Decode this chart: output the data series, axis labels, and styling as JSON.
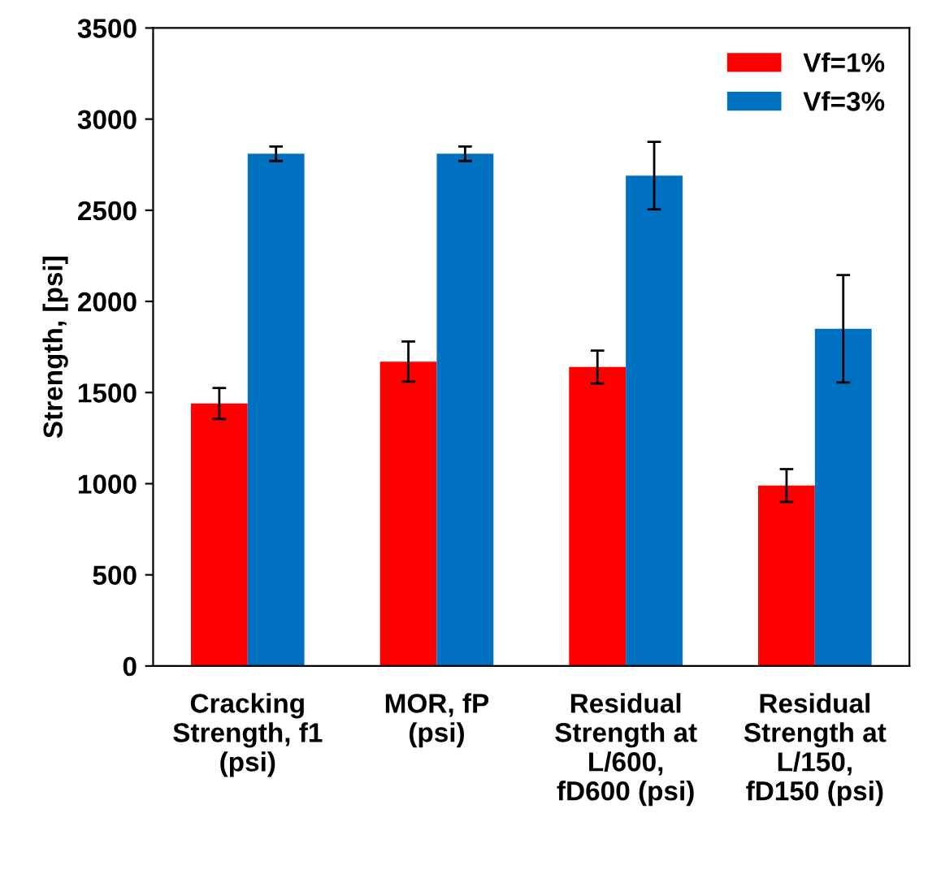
{
  "chart_data": {
    "type": "bar",
    "ylabel": "Strength, [psi]",
    "categories": [
      "Cracking\nStrength, f1\n(psi)",
      "MOR, fP\n(psi)",
      "Residual\nStrength at\nL/600,\nfD600 (psi)",
      "Residual\nStrength at\nL/150,\nfD150 (psi)"
    ],
    "series": [
      {
        "name": "Vf=1%",
        "color": "#ff0000",
        "values": [
          1440,
          1670,
          1640,
          990
        ],
        "errors": [
          85,
          110,
          90,
          90
        ]
      },
      {
        "name": "Vf=3%",
        "color": "#0070c0",
        "values": [
          2810,
          2810,
          2690,
          1850
        ],
        "errors": [
          40,
          40,
          185,
          295
        ]
      }
    ],
    "ylim": [
      0,
      3500
    ],
    "yticks": [
      0,
      500,
      1000,
      1500,
      2000,
      2500,
      3000,
      3500
    ],
    "grid": false,
    "legend": "top right"
  }
}
